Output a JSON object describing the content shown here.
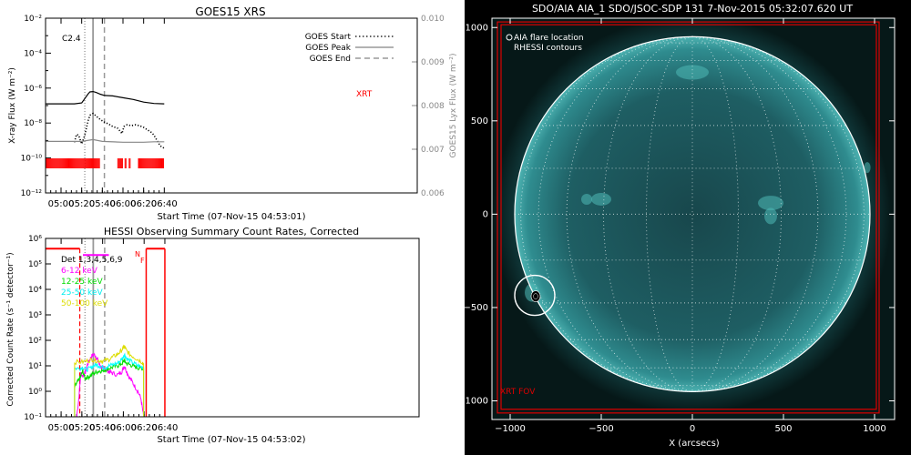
{
  "colors": {
    "background": "#ffffff",
    "dark_background": "#000000",
    "axis": "#000000",
    "xrt": "#ff0000",
    "goes_short": "#000000",
    "goes_lyx": "#888888",
    "band_6_12": "#ff00ff",
    "band_12_25": "#00dd00",
    "band_25_50": "#00ffff",
    "band_50_100": "#dddd00",
    "sun_disk": "#1e6e70",
    "limb": "#ffffff",
    "fov": "#dd0000"
  },
  "chart_data": [
    {
      "type": "line",
      "title": "GOES15 XRS",
      "xlabel": "Start Time (07-Nov-15 04:53:01)",
      "ylabel": "X-ray Flux (W m⁻²)",
      "y2label": "GOES15 Lyx Flux (W m⁻²)",
      "annotation": "C2.4",
      "log_y": true,
      "xlim_min": [
        285,
        645
      ],
      "ylim_exp": [
        -12,
        -2
      ],
      "y2lim": [
        0.006,
        0.01
      ],
      "x_ticks": [
        "05:00",
        "05:20",
        "05:40",
        "06:00",
        "06:20",
        "06:40"
      ],
      "x_tick_minutes": [
        300,
        320,
        340,
        360,
        380,
        400
      ],
      "y_tick_labels": [
        "10⁻¹²",
        "10⁻¹⁰",
        "10⁻⁸",
        "10⁻⁶",
        "10⁻⁴",
        "10⁻²"
      ],
      "y2_tick_labels": [
        "0.006",
        "0.007",
        "0.008",
        "0.009",
        "0.010"
      ],
      "legend": [
        {
          "label": "GOES Start",
          "style": "dotted"
        },
        {
          "label": "GOES Peak",
          "style": "solid"
        },
        {
          "label": "GOES End",
          "style": "dashed"
        }
      ],
      "legend_position": "top-right",
      "event_lines_min": {
        "start": 323,
        "peak": 331,
        "end": 342
      },
      "xrt_label": "XRT",
      "xrt_segments_min": [
        [
          285,
          338
        ],
        [
          355,
          360
        ],
        [
          362,
          363.5
        ],
        [
          366,
          367.5
        ],
        [
          375,
          400
        ]
      ],
      "series": [
        {
          "style": "solid",
          "color": "#000000",
          "x": [
            285,
            300,
            313,
            320,
            323,
            326,
            328,
            331,
            334,
            338,
            342,
            350,
            360,
            370,
            380,
            390,
            400
          ],
          "y": [
            -6.9,
            -6.9,
            -6.9,
            -6.85,
            -6.6,
            -6.35,
            -6.22,
            -6.2,
            -6.25,
            -6.35,
            -6.42,
            -6.45,
            -6.55,
            -6.65,
            -6.8,
            -6.88,
            -6.9
          ]
        },
        {
          "style": "dotted",
          "color": "#000000",
          "x": [
            313,
            315,
            317,
            320,
            323,
            326,
            328,
            331,
            334,
            338,
            342,
            346,
            350,
            355,
            359,
            361,
            364,
            368,
            372,
            376,
            380,
            384,
            388,
            390,
            393,
            396,
            400
          ],
          "y": [
            -9.1,
            -8.65,
            -8.7,
            -9.2,
            -8.7,
            -7.9,
            -7.55,
            -7.45,
            -7.6,
            -7.8,
            -7.95,
            -8.05,
            -8.2,
            -8.3,
            -8.6,
            -8.2,
            -8.1,
            -8.15,
            -8.1,
            -8.15,
            -8.25,
            -8.4,
            -8.55,
            -8.7,
            -9.0,
            -9.3,
            -9.45
          ]
        },
        {
          "style": "solid",
          "color": "#888888",
          "axis": "right",
          "x": [
            285,
            320,
            331,
            340,
            360,
            380,
            390,
            400
          ],
          "y": [
            0.00718,
            0.00718,
            0.00722,
            0.00718,
            0.00716,
            0.00716,
            0.00717,
            0.00717
          ]
        }
      ]
    },
    {
      "type": "line",
      "title": "HESSI Observing Summary Count Rates, Corrected",
      "xlabel": "Start Time (07-Nov-15 04:53:02)",
      "ylabel": "Corrected Count Rate (s⁻¹ detector⁻¹)",
      "log_y": true,
      "xlim_min": [
        285,
        645
      ],
      "ylim_exp": [
        -1,
        6
      ],
      "x_ticks": [
        "05:00",
        "05:20",
        "05:40",
        "06:00",
        "06:20",
        "06:40"
      ],
      "x_tick_minutes": [
        300,
        320,
        340,
        360,
        380,
        400
      ],
      "y_tick_labels": [
        "10⁻¹",
        "10⁰",
        "10¹",
        "10²",
        "10³",
        "10⁴",
        "10⁵",
        "10⁶"
      ],
      "legend": [
        {
          "label": "Det 1,3,4,5,6,9",
          "color": "#000000"
        },
        {
          "label": "6-12 keV",
          "color": "#ff00ff"
        },
        {
          "label": "12-25 keV",
          "color": "#00dd00"
        },
        {
          "label": "25-50 keV",
          "color": "#00ffff"
        },
        {
          "label": "50-100 keV",
          "color": "#dddd00"
        }
      ],
      "legend_position": "top-left",
      "event_lines_min": {
        "start": 323,
        "peak": 331,
        "end": 342
      },
      "flags": {
        "n": "N",
        "f": "F"
      },
      "night_bars": [
        [
          285,
          318
        ],
        [
          382,
          400
        ]
      ],
      "night_level_exp": 5.6,
      "flare_flag": {
        "x": [
          321,
          346
        ],
        "y_exp": 5.35
      },
      "series": [
        {
          "name": "6-12 keV",
          "color": "#ff00ff",
          "x": [
            315,
            317,
            319,
            321,
            323,
            325,
            327,
            329,
            331,
            333,
            335,
            337,
            339,
            341,
            343,
            345,
            347,
            350,
            355,
            358,
            360,
            361,
            363,
            365,
            368,
            371,
            374,
            377,
            379.5
          ],
          "y": [
            -1,
            -0.3,
            0.7,
            0.6,
            0.7,
            1.0,
            1.2,
            1.35,
            1.45,
            1.4,
            1.25,
            1.05,
            0.95,
            0.9,
            0.85,
            0.8,
            0.75,
            0.7,
            0.65,
            0.75,
            0.9,
            1.0,
            0.8,
            0.6,
            0.4,
            0.2,
            0.0,
            -0.3,
            -1
          ]
        },
        {
          "name": "12-25 keV",
          "color": "#00dd00",
          "x": [
            313,
            315,
            317,
            319,
            321,
            323,
            325,
            328,
            331,
            334,
            337,
            340,
            343,
            346,
            350,
            354,
            357,
            360,
            361,
            363,
            366,
            369,
            372,
            375,
            378,
            379.5
          ],
          "y": [
            0.2,
            0.3,
            0.45,
            0.6,
            0.8,
            0.5,
            0.55,
            0.6,
            0.7,
            0.75,
            0.8,
            0.8,
            0.85,
            0.9,
            0.95,
            1.0,
            1.05,
            1.15,
            1.2,
            1.1,
            1.05,
            1.0,
            0.95,
            0.92,
            0.9,
            0.9
          ]
        },
        {
          "name": "25-50 keV",
          "color": "#00ffff",
          "x": [
            313,
            318,
            321,
            324,
            328,
            331,
            334,
            337,
            340,
            343,
            346,
            350,
            354,
            357,
            360,
            361,
            363,
            366,
            370,
            374,
            378,
            379.5
          ],
          "y": [
            0.9,
            0.9,
            0.95,
            0.85,
            0.9,
            1.0,
            1.05,
            1.0,
            0.95,
            0.95,
            1.0,
            1.05,
            1.1,
            1.2,
            1.35,
            1.45,
            1.3,
            1.2,
            1.1,
            1.0,
            0.95,
            0.95
          ]
        },
        {
          "name": "50-100 keV",
          "color": "#dddd00",
          "x": [
            313,
            320,
            326,
            330,
            334,
            338,
            342,
            346,
            350,
            354,
            357,
            360,
            361,
            363,
            366,
            370,
            374,
            378,
            379.5
          ],
          "y": [
            1.15,
            1.15,
            1.2,
            1.25,
            1.2,
            1.2,
            1.2,
            1.25,
            1.35,
            1.45,
            1.55,
            1.7,
            1.75,
            1.6,
            1.45,
            1.35,
            1.25,
            1.15,
            1.1
          ]
        }
      ]
    },
    {
      "type": "image",
      "title": "SDO/AIA AIA_1 SDO/JSOC-SDP 131  7-Nov-2015 05:32:07.620 UT",
      "xlabel": "X (arcsecs)",
      "xlim": [
        -1100,
        1110
      ],
      "ylim": [
        -1100,
        1050
      ],
      "x_ticks": [
        -1000,
        -500,
        0,
        500,
        1000
      ],
      "y_ticks": [
        1000,
        500,
        0,
        -500,
        -1000
      ],
      "x_tick_labels": [
        "−1000",
        "−500",
        "0",
        "500",
        "1000"
      ],
      "y_tick_labels": [
        "1000",
        "500",
        "0",
        "−500",
        "−1000"
      ],
      "legend": [
        "AIA flare location",
        "RHESSI contours"
      ],
      "legend_position": "top-left",
      "sun_radius_arcsec": 975,
      "flare_location": [
        -865,
        -435
      ],
      "flare_circle_radius_arcsec": 110,
      "fov_label": "XRT FOV",
      "fov_outer": [
        [
          -1070,
          -1065
        ],
        [
          1025,
          1030
        ]
      ],
      "fov_inner": [
        [
          -1050,
          -1045
        ],
        [
          1010,
          1015
        ]
      ]
    }
  ]
}
